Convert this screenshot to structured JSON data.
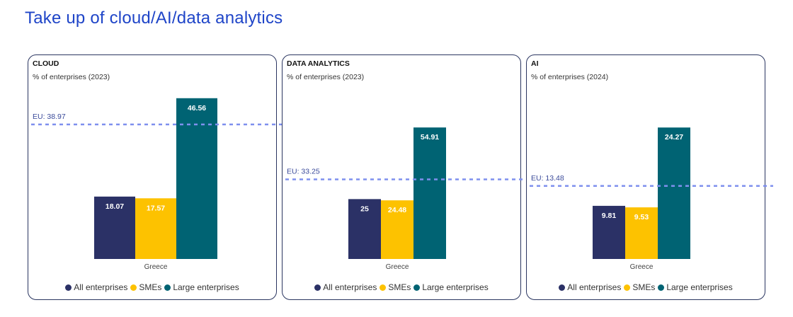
{
  "page": {
    "title": "Take up of cloud/AI/data analytics"
  },
  "colors": {
    "all_enterprises": "#2b3166",
    "smes": "#fdc200",
    "large_enterprises": "#006373",
    "eu_line": "#7f90ee"
  },
  "legend": [
    {
      "label": "All enterprises",
      "color_key": "all_enterprises"
    },
    {
      "label": "SMEs",
      "color_key": "smes"
    },
    {
      "label": "Large enterprises",
      "color_key": "large_enterprises"
    }
  ],
  "chart_data": [
    {
      "type": "bar",
      "title": "CLOUD",
      "subtitle": "% of enterprises (2023)",
      "categories": [
        "Greece"
      ],
      "series": [
        {
          "name": "All enterprises",
          "values": [
            18.07
          ],
          "labels": [
            "18.07"
          ]
        },
        {
          "name": "SMEs",
          "values": [
            17.57
          ],
          "labels": [
            "17.57"
          ]
        },
        {
          "name": "Large enterprises",
          "values": [
            46.56
          ],
          "labels": [
            "46.56"
          ]
        }
      ],
      "reference_line": {
        "label": "EU: 38.97",
        "value": 38.97
      },
      "ylim": [
        0,
        50
      ]
    },
    {
      "type": "bar",
      "title": "DATA ANALYTICS",
      "subtitle": "% of enterprises (2023)",
      "categories": [
        "Greece"
      ],
      "series": [
        {
          "name": "All enterprises",
          "values": [
            25
          ],
          "labels": [
            "25"
          ]
        },
        {
          "name": "SMEs",
          "values": [
            24.48
          ],
          "labels": [
            "24.48"
          ]
        },
        {
          "name": "Large enterprises",
          "values": [
            54.91
          ],
          "labels": [
            "54.91"
          ]
        }
      ],
      "reference_line": {
        "label": "EU: 33.25",
        "value": 33.25
      },
      "ylim": [
        0,
        65
      ]
    },
    {
      "type": "bar",
      "title": "AI",
      "subtitle": "% of enterprises (2024)",
      "categories": [
        "Greece"
      ],
      "series": [
        {
          "name": "All enterprises",
          "values": [
            9.81
          ],
          "labels": [
            "9.81"
          ]
        },
        {
          "name": "SMEs",
          "values": [
            9.53
          ],
          "labels": [
            "9.53"
          ]
        },
        {
          "name": "Large enterprises",
          "values": [
            24.27
          ],
          "labels": [
            "24.27"
          ]
        }
      ],
      "reference_line": {
        "label": "EU: 13.48",
        "value": 13.48
      },
      "ylim": [
        0,
        29
      ]
    }
  ]
}
